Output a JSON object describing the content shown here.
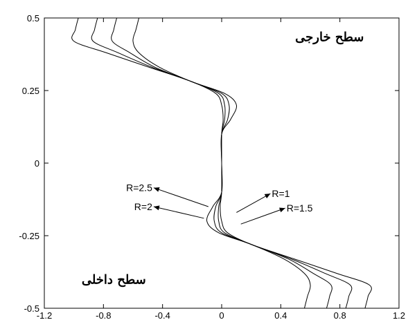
{
  "chart_data": {
    "type": "line",
    "title": "",
    "xlabel": "",
    "ylabel": "",
    "xlim": [
      -1.2,
      1.2
    ],
    "ylim": [
      -0.5,
      0.5
    ],
    "xticks": [
      -1.2,
      -0.8,
      -0.4,
      0,
      0.4,
      0.8,
      1.2
    ],
    "xtick_labels": [
      "-1.2",
      "-0.8",
      "-0.4",
      "0",
      "0.4",
      "0.8",
      "1.2"
    ],
    "yticks": [
      -0.5,
      -0.25,
      0,
      0.25,
      0.5
    ],
    "ytick_labels": [
      "-0.5",
      "-0.25",
      "0",
      "0.25",
      "0.5"
    ],
    "grid": false,
    "series": [
      {
        "x": [
          -0.56,
          -0.58,
          -0.6,
          -0.56,
          -0.42,
          -0.2,
          0.02,
          0.1,
          0.06,
          0.0,
          0.0,
          0.0,
          -0.06,
          -0.1,
          -0.02,
          0.2,
          0.42,
          0.56,
          0.6,
          0.58,
          0.56
        ],
        "y": [
          0.5,
          0.46,
          0.42,
          0.38,
          0.33,
          0.28,
          0.24,
          0.2,
          0.15,
          0.1,
          0.0,
          -0.1,
          -0.15,
          -0.2,
          -0.24,
          -0.28,
          -0.33,
          -0.38,
          -0.42,
          -0.46,
          -0.5
        ]
      },
      {
        "x": [
          -0.71,
          -0.73,
          -0.74,
          -0.62,
          -0.45,
          -0.2,
          0.0,
          0.05,
          0.04,
          0.0,
          0.0,
          0.0,
          -0.04,
          -0.05,
          0.0,
          0.2,
          0.45,
          0.62,
          0.74,
          0.73,
          0.71
        ],
        "y": [
          0.5,
          0.46,
          0.42,
          0.38,
          0.33,
          0.28,
          0.24,
          0.2,
          0.15,
          0.1,
          0.0,
          -0.1,
          -0.15,
          -0.2,
          -0.24,
          -0.28,
          -0.33,
          -0.38,
          -0.42,
          -0.46,
          -0.5
        ]
      },
      {
        "x": [
          -0.84,
          -0.86,
          -0.87,
          -0.7,
          -0.47,
          -0.2,
          -0.02,
          0.02,
          0.02,
          0.0,
          0.0,
          0.0,
          -0.02,
          -0.02,
          0.02,
          0.2,
          0.47,
          0.7,
          0.87,
          0.86,
          0.84
        ],
        "y": [
          0.5,
          0.46,
          0.42,
          0.38,
          0.33,
          0.28,
          0.24,
          0.2,
          0.15,
          0.1,
          0.0,
          -0.1,
          -0.15,
          -0.2,
          -0.24,
          -0.28,
          -0.33,
          -0.38,
          -0.42,
          -0.46,
          -0.5
        ]
      },
      {
        "x": [
          -0.97,
          -0.99,
          -1.0,
          -0.78,
          -0.49,
          -0.2,
          -0.04,
          0.0,
          0.01,
          0.0,
          0.0,
          0.0,
          -0.01,
          0.0,
          0.04,
          0.2,
          0.49,
          0.78,
          1.0,
          0.99,
          0.97
        ],
        "y": [
          0.5,
          0.46,
          0.42,
          0.38,
          0.33,
          0.28,
          0.24,
          0.2,
          0.15,
          0.1,
          0.0,
          -0.1,
          -0.15,
          -0.2,
          -0.24,
          -0.28,
          -0.33,
          -0.38,
          -0.42,
          -0.46,
          -0.5
        ]
      }
    ],
    "annotations": [
      {
        "text": "R=1",
        "x": 0.34,
        "y": -0.105,
        "arrow_from": [
          0.1,
          -0.17
        ],
        "arrow_to": [
          0.33,
          -0.105
        ]
      },
      {
        "text": "R=1.5",
        "x": 0.44,
        "y": -0.155,
        "arrow_from": [
          0.13,
          -0.21
        ],
        "arrow_to": [
          0.43,
          -0.155
        ]
      },
      {
        "text": "R=2.5",
        "x": -0.85,
        "y": -0.09,
        "arrow_from": [
          -0.09,
          -0.15
        ],
        "arrow_to": [
          -0.46,
          -0.085
        ]
      },
      {
        "text": "R=2",
        "x": -0.85,
        "y": -0.155,
        "arrow_from": [
          -0.12,
          -0.19
        ],
        "arrow_to": [
          -0.46,
          -0.15
        ]
      }
    ],
    "region_labels": [
      {
        "text": "سطح خارجی",
        "x": 0.73,
        "y": 0.42
      },
      {
        "text": "سطح داخلی",
        "x": -0.73,
        "y": -0.415
      }
    ]
  }
}
